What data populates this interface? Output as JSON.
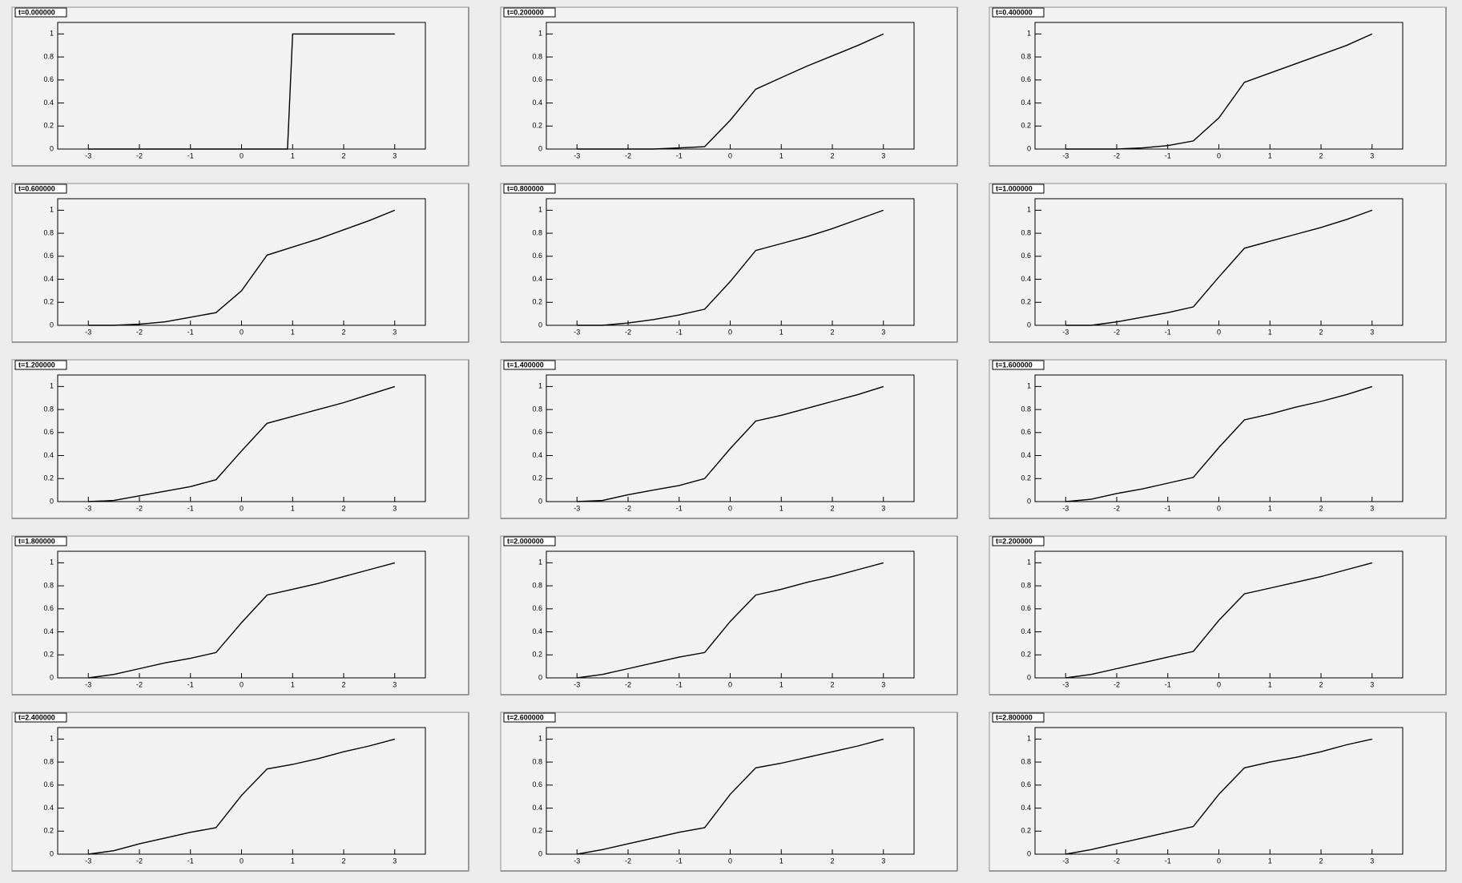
{
  "chart_data": [
    {
      "type": "line",
      "title": "t=0.000000",
      "color": "#000000",
      "x": [
        -3,
        0.9,
        1,
        3
      ],
      "values": [
        0,
        0,
        1,
        1
      ],
      "xlim": [
        -3.6,
        3.6
      ],
      "ylim": [
        0,
        1.1
      ],
      "xticks": [
        -3,
        -2,
        -1,
        0,
        1,
        2,
        3
      ],
      "yticks": [
        0,
        0.2,
        0.4,
        0.6,
        0.8,
        1
      ]
    },
    {
      "type": "line",
      "title": "t=0.200000",
      "color": "#000000",
      "x": [
        -3,
        -2.5,
        -2,
        -1.5,
        -1,
        -0.5,
        0,
        0.5,
        1,
        1.5,
        2,
        2.5,
        3
      ],
      "values": [
        0,
        0,
        0,
        0,
        0.01,
        0.02,
        0.25,
        0.52,
        0.62,
        0.72,
        0.81,
        0.9,
        1
      ],
      "xlim": [
        -3.6,
        3.6
      ],
      "ylim": [
        0,
        1.1
      ],
      "xticks": [
        -3,
        -2,
        -1,
        0,
        1,
        2,
        3
      ],
      "yticks": [
        0,
        0.2,
        0.4,
        0.6,
        0.8,
        1
      ]
    },
    {
      "type": "line",
      "title": "t=0.400000",
      "color": "#000000",
      "x": [
        -3,
        -2.5,
        -2,
        -1.5,
        -1,
        -0.5,
        0,
        0.5,
        1,
        1.5,
        2,
        2.5,
        3
      ],
      "values": [
        0,
        0,
        0,
        0.01,
        0.03,
        0.07,
        0.27,
        0.58,
        0.66,
        0.74,
        0.82,
        0.9,
        1
      ],
      "xlim": [
        -3.6,
        3.6
      ],
      "ylim": [
        0,
        1.1
      ],
      "xticks": [
        -3,
        -2,
        -1,
        0,
        1,
        2,
        3
      ],
      "yticks": [
        0,
        0.2,
        0.4,
        0.6,
        0.8,
        1
      ]
    },
    {
      "type": "line",
      "title": "t=0.600000",
      "color": "#000000",
      "x": [
        -3,
        -2.5,
        -2,
        -1.5,
        -1,
        -0.5,
        0,
        0.5,
        1,
        1.5,
        2,
        2.5,
        3
      ],
      "values": [
        0,
        0,
        0.01,
        0.03,
        0.07,
        0.11,
        0.3,
        0.61,
        0.68,
        0.75,
        0.83,
        0.91,
        1
      ],
      "xlim": [
        -3.6,
        3.6
      ],
      "ylim": [
        0,
        1.1
      ],
      "xticks": [
        -3,
        -2,
        -1,
        0,
        1,
        2,
        3
      ],
      "yticks": [
        0,
        0.2,
        0.4,
        0.6,
        0.8,
        1
      ]
    },
    {
      "type": "line",
      "title": "t=0.800000",
      "color": "#000000",
      "x": [
        -3,
        -2.5,
        -2,
        -1.5,
        -1,
        -0.5,
        0,
        0.5,
        1,
        1.5,
        2,
        2.5,
        3
      ],
      "values": [
        0,
        0,
        0.02,
        0.05,
        0.09,
        0.14,
        0.38,
        0.65,
        0.71,
        0.77,
        0.84,
        0.92,
        1
      ],
      "xlim": [
        -3.6,
        3.6
      ],
      "ylim": [
        0,
        1.1
      ],
      "xticks": [
        -3,
        -2,
        -1,
        0,
        1,
        2,
        3
      ],
      "yticks": [
        0,
        0.2,
        0.4,
        0.6,
        0.8,
        1
      ]
    },
    {
      "type": "line",
      "title": "t=1.000000",
      "color": "#000000",
      "x": [
        -3,
        -2.5,
        -2,
        -1.5,
        -1,
        -0.5,
        0,
        0.5,
        1,
        1.5,
        2,
        2.5,
        3
      ],
      "values": [
        0,
        0,
        0.03,
        0.07,
        0.11,
        0.16,
        0.42,
        0.67,
        0.73,
        0.79,
        0.85,
        0.92,
        1
      ],
      "xlim": [
        -3.6,
        3.6
      ],
      "ylim": [
        0,
        1.1
      ],
      "xticks": [
        -3,
        -2,
        -1,
        0,
        1,
        2,
        3
      ],
      "yticks": [
        0,
        0.2,
        0.4,
        0.6,
        0.8,
        1
      ]
    },
    {
      "type": "line",
      "title": "t=1.200000",
      "color": "#000000",
      "x": [
        -3,
        -2.5,
        -2,
        -1.5,
        -1,
        -0.5,
        0,
        0.5,
        1,
        1.5,
        2,
        2.5,
        3
      ],
      "values": [
        0,
        0.01,
        0.05,
        0.09,
        0.13,
        0.19,
        0.44,
        0.68,
        0.74,
        0.8,
        0.86,
        0.93,
        1
      ],
      "xlim": [
        -3.6,
        3.6
      ],
      "ylim": [
        0,
        1.1
      ],
      "xticks": [
        -3,
        -2,
        -1,
        0,
        1,
        2,
        3
      ],
      "yticks": [
        0,
        0.2,
        0.4,
        0.6,
        0.8,
        1
      ]
    },
    {
      "type": "line",
      "title": "t=1.400000",
      "color": "#000000",
      "x": [
        -3,
        -2.5,
        -2,
        -1.5,
        -1,
        -0.5,
        0,
        0.5,
        1,
        1.5,
        2,
        2.5,
        3
      ],
      "values": [
        0,
        0.01,
        0.06,
        0.1,
        0.14,
        0.2,
        0.46,
        0.7,
        0.75,
        0.81,
        0.87,
        0.93,
        1
      ],
      "xlim": [
        -3.6,
        3.6
      ],
      "ylim": [
        0,
        1.1
      ],
      "xticks": [
        -3,
        -2,
        -1,
        0,
        1,
        2,
        3
      ],
      "yticks": [
        0,
        0.2,
        0.4,
        0.6,
        0.8,
        1
      ]
    },
    {
      "type": "line",
      "title": "t=1.600000",
      "color": "#000000",
      "x": [
        -3,
        -2.5,
        -2,
        -1.5,
        -1,
        -0.5,
        0,
        0.5,
        1,
        1.5,
        2,
        2.5,
        3
      ],
      "values": [
        0,
        0.02,
        0.07,
        0.11,
        0.16,
        0.21,
        0.47,
        0.71,
        0.76,
        0.82,
        0.87,
        0.93,
        1
      ],
      "xlim": [
        -3.6,
        3.6
      ],
      "ylim": [
        0,
        1.1
      ],
      "xticks": [
        -3,
        -2,
        -1,
        0,
        1,
        2,
        3
      ],
      "yticks": [
        0,
        0.2,
        0.4,
        0.6,
        0.8,
        1
      ]
    },
    {
      "type": "line",
      "title": "t=1.800000",
      "color": "#000000",
      "x": [
        -3,
        -2.5,
        -2,
        -1.5,
        -1,
        -0.5,
        0,
        0.5,
        1,
        1.5,
        2,
        2.5,
        3
      ],
      "values": [
        0,
        0.03,
        0.08,
        0.13,
        0.17,
        0.22,
        0.48,
        0.72,
        0.77,
        0.82,
        0.88,
        0.94,
        1
      ],
      "xlim": [
        -3.6,
        3.6
      ],
      "ylim": [
        0,
        1.1
      ],
      "xticks": [
        -3,
        -2,
        -1,
        0,
        1,
        2,
        3
      ],
      "yticks": [
        0,
        0.2,
        0.4,
        0.6,
        0.8,
        1
      ]
    },
    {
      "type": "line",
      "title": "t=2.000000",
      "color": "#000000",
      "x": [
        -3,
        -2.5,
        -2,
        -1.5,
        -1,
        -0.5,
        0,
        0.5,
        1,
        1.5,
        2,
        2.5,
        3
      ],
      "values": [
        0,
        0.03,
        0.08,
        0.13,
        0.18,
        0.22,
        0.49,
        0.72,
        0.77,
        0.83,
        0.88,
        0.94,
        1
      ],
      "xlim": [
        -3.6,
        3.6
      ],
      "ylim": [
        0,
        1.1
      ],
      "xticks": [
        -3,
        -2,
        -1,
        0,
        1,
        2,
        3
      ],
      "yticks": [
        0,
        0.2,
        0.4,
        0.6,
        0.8,
        1
      ]
    },
    {
      "type": "line",
      "title": "t=2.200000",
      "color": "#000000",
      "x": [
        -3,
        -2.5,
        -2,
        -1.5,
        -1,
        -0.5,
        0,
        0.5,
        1,
        1.5,
        2,
        2.5,
        3
      ],
      "values": [
        0,
        0.03,
        0.08,
        0.13,
        0.18,
        0.23,
        0.5,
        0.73,
        0.78,
        0.83,
        0.88,
        0.94,
        1
      ],
      "xlim": [
        -3.6,
        3.6
      ],
      "ylim": [
        0,
        1.1
      ],
      "xticks": [
        -3,
        -2,
        -1,
        0,
        1,
        2,
        3
      ],
      "yticks": [
        0,
        0.2,
        0.4,
        0.6,
        0.8,
        1
      ]
    },
    {
      "type": "line",
      "title": "t=2.400000",
      "color": "#000000",
      "x": [
        -3,
        -2.5,
        -2,
        -1.5,
        -1,
        -0.5,
        0,
        0.5,
        1,
        1.5,
        2,
        2.5,
        3
      ],
      "values": [
        0,
        0.03,
        0.09,
        0.14,
        0.19,
        0.23,
        0.51,
        0.74,
        0.78,
        0.83,
        0.89,
        0.94,
        1
      ],
      "xlim": [
        -3.6,
        3.6
      ],
      "ylim": [
        0,
        1.1
      ],
      "xticks": [
        -3,
        -2,
        -1,
        0,
        1,
        2,
        3
      ],
      "yticks": [
        0,
        0.2,
        0.4,
        0.6,
        0.8,
        1
      ]
    },
    {
      "type": "line",
      "title": "t=2.600000",
      "color": "#000000",
      "x": [
        -3,
        -2.5,
        -2,
        -1.5,
        -1,
        -0.5,
        0,
        0.5,
        1,
        1.5,
        2,
        2.5,
        3
      ],
      "values": [
        0,
        0.04,
        0.09,
        0.14,
        0.19,
        0.23,
        0.52,
        0.75,
        0.79,
        0.84,
        0.89,
        0.94,
        1
      ],
      "xlim": [
        -3.6,
        3.6
      ],
      "ylim": [
        0,
        1.1
      ],
      "xticks": [
        -3,
        -2,
        -1,
        0,
        1,
        2,
        3
      ],
      "yticks": [
        0,
        0.2,
        0.4,
        0.6,
        0.8,
        1
      ]
    },
    {
      "type": "line",
      "title": "t=2.800000",
      "color": "#000000",
      "x": [
        -3,
        -2.5,
        -2,
        -1.5,
        -1,
        -0.5,
        0,
        0.5,
        1,
        1.5,
        2,
        2.5,
        3
      ],
      "values": [
        0,
        0.04,
        0.09,
        0.14,
        0.19,
        0.24,
        0.52,
        0.75,
        0.8,
        0.84,
        0.89,
        0.95,
        1
      ],
      "xlim": [
        -3.6,
        3.6
      ],
      "ylim": [
        0,
        1.1
      ],
      "xticks": [
        -3,
        -2,
        -1,
        0,
        1,
        2,
        3
      ],
      "yticks": [
        0,
        0.2,
        0.4,
        0.6,
        0.8,
        1
      ]
    }
  ]
}
